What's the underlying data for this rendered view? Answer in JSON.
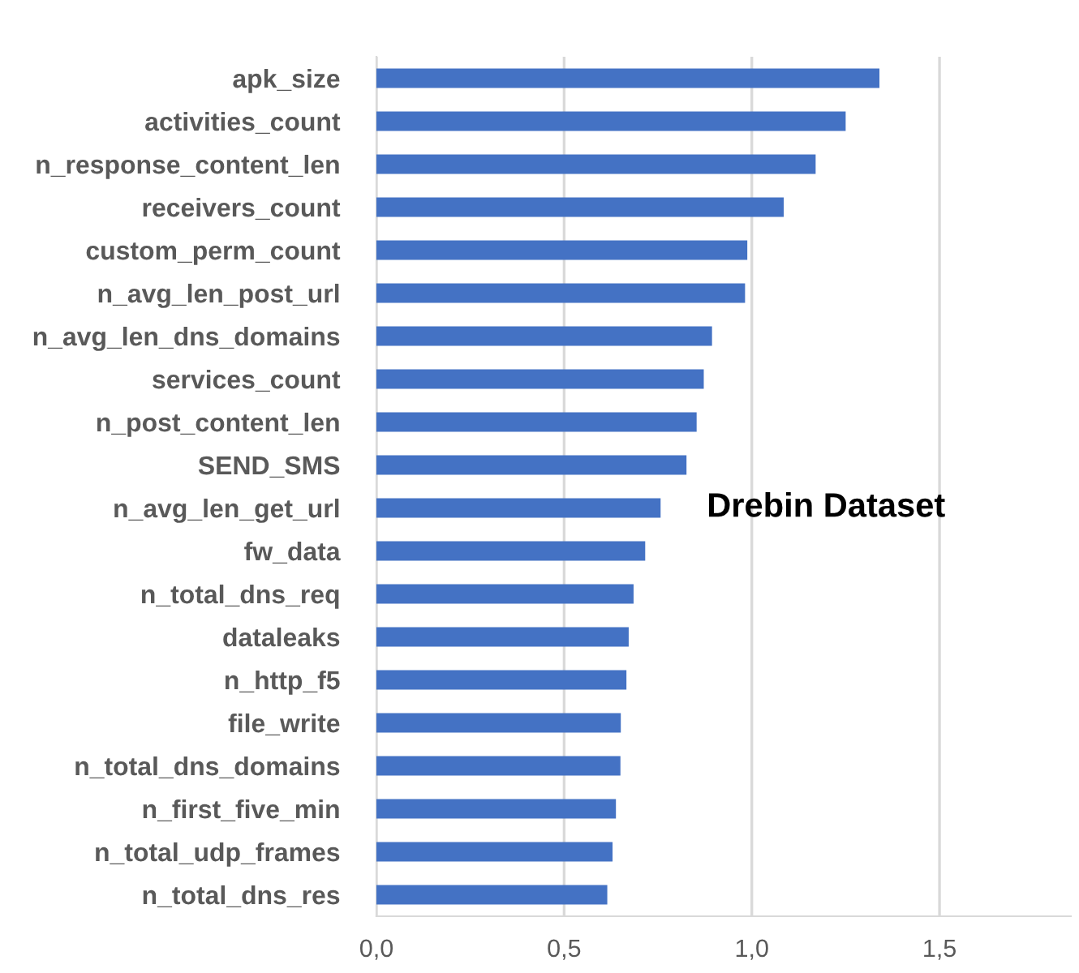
{
  "chart_data": {
    "type": "bar",
    "orientation": "horizontal",
    "title": "Drebin Dataset",
    "categories": [
      "apk_size",
      "activities_count",
      "n_response_content_len",
      "receivers_count",
      "custom_perm_count",
      "n_avg_len_post_url",
      "n_avg_len_dns_domains",
      "services_count",
      "n_post_content_len",
      "SEND_SMS",
      "n_avg_len_get_url",
      "fw_data",
      "n_total_dns_req",
      "dataleaks",
      "n_http_f5",
      "file_write",
      "n_total_dns_domains",
      "n_first_five_min",
      "n_total_udp_frames",
      "n_total_dns_res"
    ],
    "values": [
      1.34,
      1.25,
      1.17,
      1.085,
      0.988,
      0.982,
      0.894,
      0.872,
      0.853,
      0.826,
      0.757,
      0.716,
      0.685,
      0.672,
      0.666,
      0.651,
      0.65,
      0.638,
      0.629,
      0.615
    ],
    "color": "#4472c4",
    "xlim": [
      0,
      1.85
    ],
    "xticks": [
      {
        "value": 0,
        "label": "0,0"
      },
      {
        "value": 0.5,
        "label": "0,5"
      },
      {
        "value": 1.0,
        "label": "1,0"
      },
      {
        "value": 1.5,
        "label": "1,5"
      }
    ],
    "grid": "x",
    "legend": false
  }
}
